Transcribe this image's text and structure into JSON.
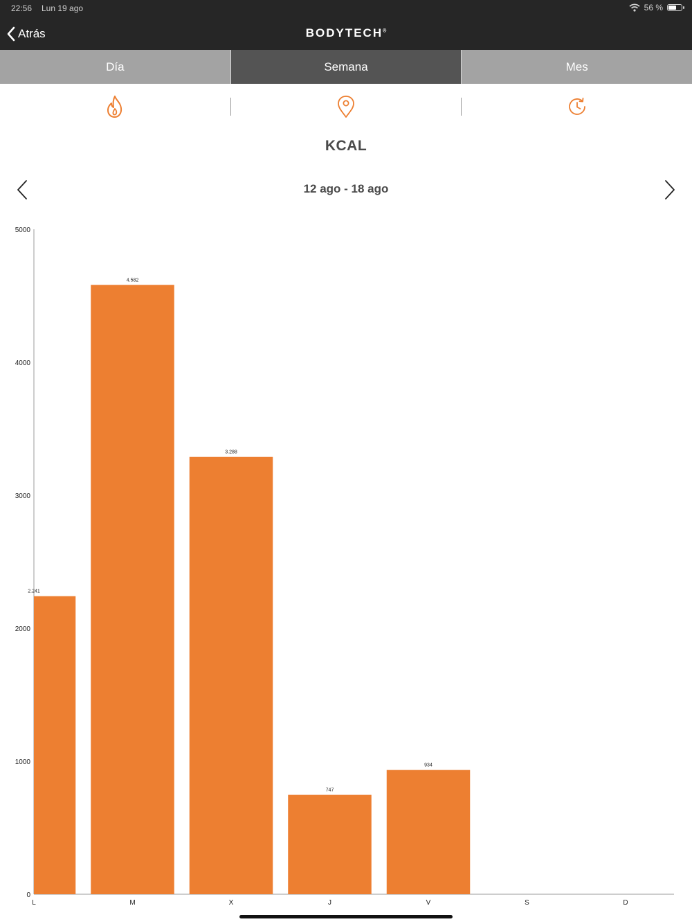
{
  "status_bar": {
    "time": "22:56",
    "date": "Lun 19 ago",
    "battery": "56 %"
  },
  "nav": {
    "back_label": "Atrás",
    "brand": "BODYTECH",
    "brand_mark": "®"
  },
  "tabs": [
    {
      "label": "Día",
      "active": false
    },
    {
      "label": "Semana",
      "active": true
    },
    {
      "label": "Mes",
      "active": false
    }
  ],
  "metrics": {
    "icons": [
      "flame-icon",
      "location-pin-icon",
      "clock-history-icon"
    ],
    "active_index": 0,
    "accent_color": "#ed7f31"
  },
  "metric_title": "KCAL",
  "date_range": "12 ago - 18 ago",
  "chart_data": {
    "type": "bar",
    "categories": [
      "L",
      "M",
      "X",
      "J",
      "V",
      "S",
      "D"
    ],
    "values": [
      2241,
      4582,
      3288,
      747,
      934,
      null,
      null
    ],
    "value_labels": [
      "2.241",
      "4.582",
      "3.288",
      "747",
      "934",
      "",
      ""
    ],
    "ylim": [
      0,
      5000
    ],
    "yticks": [
      "0",
      "1000",
      "2000",
      "3000",
      "4000",
      "5000"
    ],
    "bar_color": "#ed7f31",
    "grid": false
  }
}
